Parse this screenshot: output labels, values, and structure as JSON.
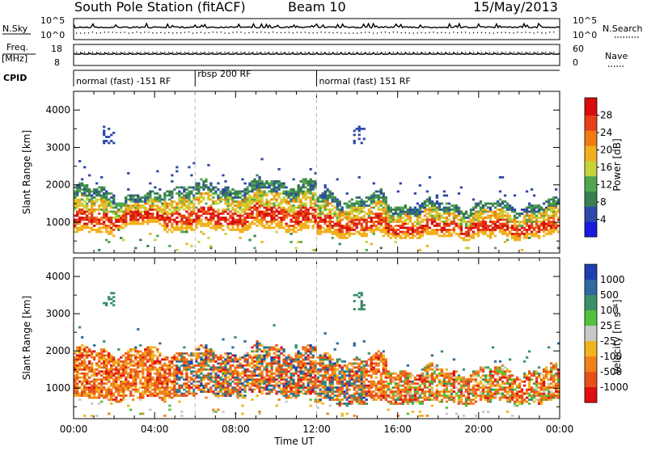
{
  "header": {
    "title": "South Pole Station (fitACF)",
    "beam": "Beam 10",
    "date": "15/May/2013"
  },
  "strip_panels": {
    "nsky_label": "N.Sky",
    "nsky_ticks": [
      "10^5",
      "10^0"
    ],
    "nsearch_label": "N.Search",
    "nsearch_ticks": [
      "10^5",
      "10^0"
    ],
    "freq_label": "Freq.",
    "freq_unit": "[MHz]",
    "freq_ticks": [
      "18",
      "8"
    ],
    "nave_label": "Nave",
    "nave_ticks": [
      "60",
      "0"
    ],
    "cpid_label": "CPID",
    "cpid_segments": [
      {
        "start": 0,
        "end": 6,
        "label": "normal (fast) -151 RF"
      },
      {
        "start": 6,
        "end": 12,
        "label": "rbsp 200 RF"
      },
      {
        "start": 12,
        "end": 24,
        "label": "normal (fast) 151 RF"
      }
    ]
  },
  "chart_data": [
    {
      "type": "heatmap",
      "parameter": "power",
      "ylabel": "Slant Range [km]",
      "ylim": [
        180,
        4500
      ],
      "yticks": [
        1000,
        2000,
        3000,
        4000
      ],
      "xlim": [
        0,
        24
      ],
      "colorbar": {
        "label": "Power [dB]",
        "range": [
          0,
          32
        ],
        "ticks": [
          "4",
          "8",
          "12",
          "16",
          "20",
          "24",
          "28"
        ],
        "colors": [
          "#1a1adf",
          "#2f49a8",
          "#3a7f4f",
          "#4fa64f",
          "#c8d23a",
          "#f2b01e",
          "#f07b12",
          "#e5401a",
          "#d90d0d"
        ]
      },
      "echo_regions": [
        {
          "t_start": 0.0,
          "t_end": 2.0,
          "range_min": 700,
          "range_max": 1900
        },
        {
          "t_start": 2.0,
          "t_end": 4.5,
          "range_min": 900,
          "range_max": 1700
        },
        {
          "t_start": 4.5,
          "t_end": 9.0,
          "range_min": 800,
          "range_max": 2000
        },
        {
          "t_start": 9.0,
          "t_end": 12.0,
          "range_min": 800,
          "range_max": 2100
        },
        {
          "t_start": 12.0,
          "t_end": 15.5,
          "range_min": 650,
          "range_max": 1700
        },
        {
          "t_start": 15.5,
          "t_end": 24.0,
          "range_min": 600,
          "range_max": 1500
        }
      ]
    },
    {
      "type": "heatmap",
      "parameter": "velocity",
      "ylabel": "Slant Range [km]",
      "xlabel": "Time UT",
      "ylim": [
        180,
        4500
      ],
      "yticks": [
        1000,
        2000,
        3000,
        4000
      ],
      "xlim": [
        0,
        24
      ],
      "xticks": [
        "00:00",
        "04:00",
        "08:00",
        "12:00",
        "16:00",
        "20:00",
        "00:00"
      ],
      "colorbar": {
        "label": "Velocity [m s⁻¹]",
        "ticks": [
          "1000",
          "500",
          "100",
          "25",
          "-25",
          "-100",
          "-500",
          "-1000"
        ],
        "colors": [
          "#1f3fb0",
          "#2e6a9e",
          "#3b8f6a",
          "#52c23a",
          "#c8c8c8",
          "#f2b41e",
          "#f0821a",
          "#e8501a",
          "#e01010"
        ]
      },
      "echo_regions": [
        {
          "t_start": 0.0,
          "t_end": 4.5,
          "range_min": 700,
          "range_max": 2000
        },
        {
          "t_start": 4.5,
          "t_end": 9.0,
          "range_min": 800,
          "range_max": 2000
        },
        {
          "t_start": 9.0,
          "t_end": 12.0,
          "range_min": 800,
          "range_max": 2100
        },
        {
          "t_start": 12.0,
          "t_end": 15.5,
          "range_min": 600,
          "range_max": 1800
        },
        {
          "t_start": 15.5,
          "t_end": 24.0,
          "range_min": 600,
          "range_max": 1500
        }
      ]
    }
  ]
}
